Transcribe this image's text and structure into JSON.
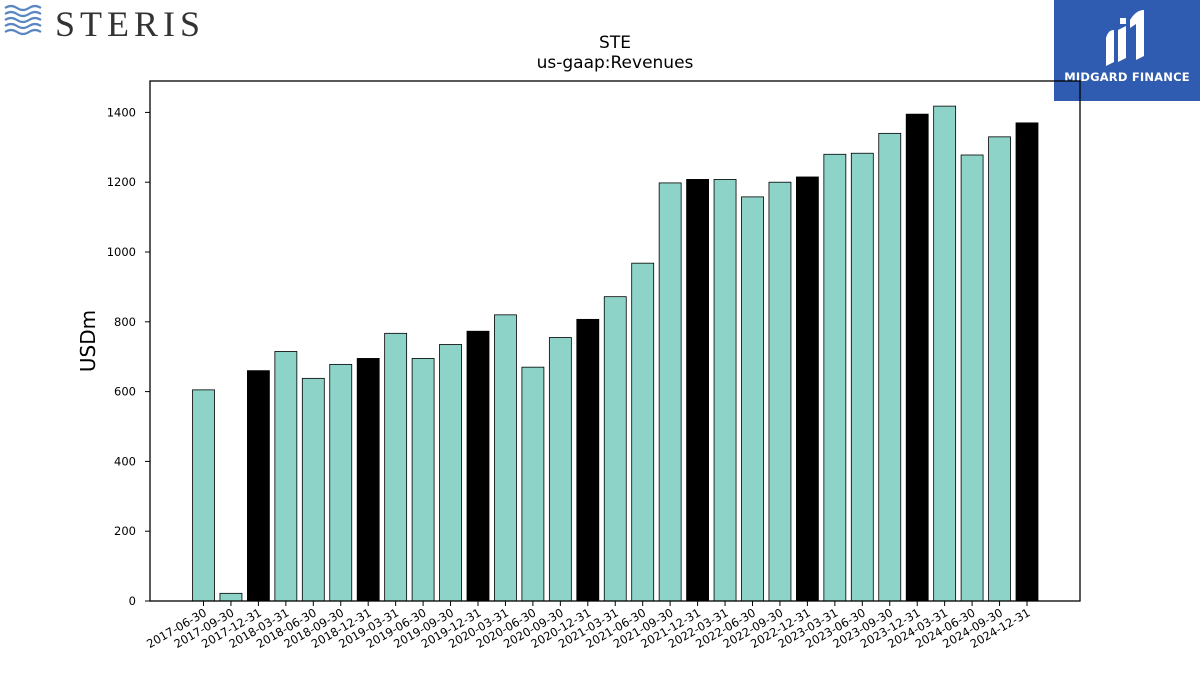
{
  "logos": {
    "left_text": "STERIS",
    "right_text": "MIDGARD FINANCE"
  },
  "colors": {
    "bar_default": "#8dd3c7",
    "bar_q4": "#000000",
    "logo_right_bg": "#2f5bb0",
    "logo_left_waves": "#5a86c2"
  },
  "chart_data": {
    "type": "bar",
    "title": "STE",
    "subtitle": "us-gaap:Revenues",
    "xlabel": "",
    "ylabel": "USDm",
    "ylim": [
      0,
      1490
    ],
    "yticks": [
      0,
      200,
      400,
      600,
      800,
      1000,
      1200,
      1400
    ],
    "grid": false,
    "categories": [
      "2017-06-30",
      "2017-09-30",
      "2017-12-31",
      "2018-03-31",
      "2018-06-30",
      "2018-09-30",
      "2018-12-31",
      "2019-03-31",
      "2019-06-30",
      "2019-09-30",
      "2019-12-31",
      "2020-03-31",
      "2020-06-30",
      "2020-09-30",
      "2020-12-31",
      "2021-03-31",
      "2021-06-30",
      "2021-09-30",
      "2021-12-31",
      "2022-03-31",
      "2022-06-30",
      "2022-09-30",
      "2022-12-31",
      "2023-03-31",
      "2023-06-30",
      "2023-09-30",
      "2023-12-31",
      "2024-03-31",
      "2024-06-30",
      "2024-09-30",
      "2024-12-31"
    ],
    "values": [
      605,
      22,
      660,
      715,
      638,
      678,
      695,
      767,
      695,
      735,
      773,
      820,
      670,
      755,
      807,
      872,
      968,
      1198,
      1208,
      1208,
      1158,
      1200,
      1215,
      1280,
      1283,
      1340,
      1395,
      1418,
      1278,
      1330,
      1370
    ]
  }
}
